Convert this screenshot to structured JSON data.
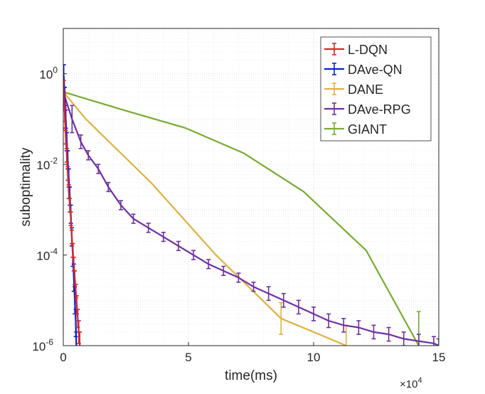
{
  "chart_data": {
    "type": "line",
    "title": "",
    "xlabel": "time(ms)",
    "ylabel": "suboptimality",
    "x_multiplier_label": "×10",
    "x_multiplier_exp": "4",
    "xlim": [
      0,
      15
    ],
    "ylim_log10": [
      -6,
      1
    ],
    "x_ticks": [
      0,
      5,
      10,
      15
    ],
    "x_tick_labels": [
      "0",
      "5",
      "10",
      "15"
    ],
    "y_ticks_log10": [
      -6,
      -4,
      -2,
      0
    ],
    "y_tick_base": "10",
    "y_tick_exps": [
      "-6",
      "-4",
      "-2",
      "0"
    ],
    "grid": true,
    "legend_position": "top-right",
    "series": [
      {
        "name": "L-DQN",
        "color": "#d62728",
        "x": [
          0.02,
          0.06,
          0.1,
          0.14,
          0.18,
          0.22,
          0.26,
          0.3,
          0.34,
          0.38,
          0.42,
          0.46,
          0.5,
          0.54,
          0.58,
          0.62,
          0.66
        ],
        "y_log10": [
          -0.3,
          -0.9,
          -1.4,
          -1.8,
          -2.2,
          -2.6,
          -2.9,
          -3.2,
          -3.6,
          -3.9,
          -4.2,
          -4.5,
          -4.8,
          -5.1,
          -5.4,
          -5.7,
          -6.0
        ],
        "err": [
          0.15,
          0.15,
          0.15,
          0.15,
          0.15,
          0.15,
          0.15,
          0.15,
          0.15,
          0.15,
          0.15,
          0.15,
          0.15,
          0.2,
          0.2,
          0.25,
          0.3
        ]
      },
      {
        "name": "DAve-QN",
        "color": "#0a1ee0",
        "x": [
          0.02,
          0.06,
          0.1,
          0.14,
          0.18,
          0.22,
          0.26,
          0.3,
          0.34,
          0.38,
          0.42,
          0.46,
          0.5,
          0.52
        ],
        "y_log10": [
          -0.05,
          -0.5,
          -1.0,
          -1.5,
          -1.9,
          -2.3,
          -2.7,
          -3.1,
          -3.6,
          -4.0,
          -4.5,
          -5.0,
          -5.5,
          -6.0
        ],
        "err": [
          0.25,
          0.2,
          0.2,
          0.2,
          0.2,
          0.2,
          0.2,
          0.2,
          0.2,
          0.25,
          0.3,
          0.3,
          0.3,
          0.3
        ]
      },
      {
        "name": "DANE",
        "color": "#e0b040",
        "x": [
          0,
          0.9,
          2.2,
          3.5,
          4.8,
          6.1,
          7.4,
          8.7,
          10.0,
          11.3
        ],
        "y_log10": [
          -0.4,
          -1.0,
          -1.7,
          -2.4,
          -3.2,
          -4.0,
          -4.7,
          -5.4,
          -5.7,
          -6.0
        ],
        "err": [
          0,
          0,
          0,
          0,
          0,
          0,
          0,
          0.35,
          0,
          0.45
        ]
      },
      {
        "name": "DAve-RPG",
        "color": "#7030a0",
        "x": [
          0,
          0.35,
          0.7,
          1.0,
          1.4,
          1.8,
          2.3,
          2.8,
          3.4,
          4.0,
          4.6,
          5.2,
          5.8,
          6.4,
          7.0,
          7.6,
          8.2,
          8.8,
          9.4,
          10.0,
          10.6,
          11.2,
          11.8,
          12.4,
          13.0,
          13.6,
          14.2,
          14.8,
          15.0
        ],
        "y_log10": [
          -0.4,
          -1.0,
          -1.5,
          -1.8,
          -2.1,
          -2.5,
          -2.9,
          -3.2,
          -3.4,
          -3.6,
          -3.8,
          -4.0,
          -4.2,
          -4.35,
          -4.5,
          -4.7,
          -4.85,
          -5.0,
          -5.15,
          -5.3,
          -5.45,
          -5.55,
          -5.6,
          -5.7,
          -5.75,
          -5.85,
          -5.9,
          -5.95,
          -6.0
        ],
        "err": [
          0,
          0.3,
          0.15,
          0.1,
          0.1,
          0.1,
          0.1,
          0.1,
          0.1,
          0.1,
          0.1,
          0.1,
          0.1,
          0.1,
          0.1,
          0.1,
          0.15,
          0.15,
          0.15,
          0.15,
          0.15,
          0.15,
          0.15,
          0.15,
          0.15,
          0.15,
          0.15,
          0.15,
          0.15
        ]
      },
      {
        "name": "GIANT",
        "color": "#77ac30",
        "x": [
          0,
          2.4,
          4.9,
          7.2,
          9.6,
          12.1,
          14.2
        ],
        "y_log10": [
          -0.4,
          -0.8,
          -1.2,
          -1.75,
          -2.6,
          -3.9,
          -6.0
        ],
        "err": [
          0,
          0,
          0,
          0,
          0,
          0,
          0.75
        ]
      }
    ]
  }
}
